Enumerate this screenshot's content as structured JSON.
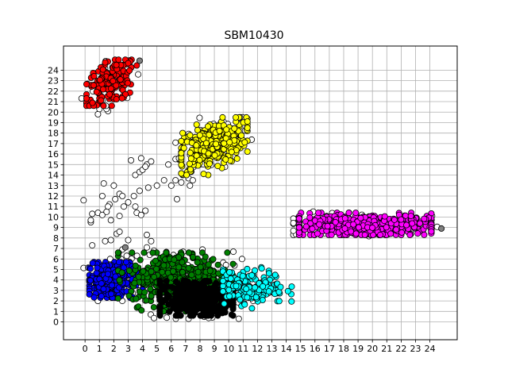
{
  "chart_data": {
    "type": "scatter",
    "title": "SBM10430",
    "xlabel": "",
    "ylabel": "",
    "xlim": [
      -1.5,
      25.9
    ],
    "ylim": [
      -1.7,
      26.3
    ],
    "xticks": [
      0,
      1,
      2,
      3,
      4,
      5,
      6,
      7,
      8,
      9,
      10,
      11,
      12,
      13,
      14,
      15,
      16,
      17,
      18,
      19,
      20,
      21,
      22,
      23,
      24
    ],
    "yticks": [
      0,
      1,
      2,
      3,
      4,
      5,
      6,
      7,
      8,
      9,
      10,
      11,
      12,
      13,
      14,
      15,
      16,
      17,
      18,
      19,
      20,
      21,
      22,
      23,
      24
    ],
    "grid": true,
    "colors": {
      "red": "#ff0000",
      "yellow": "#ffff00",
      "magenta": "#ff00ff",
      "blue": "#0000ff",
      "green": "#008000",
      "black": "#000000",
      "cyan": "#00ffff",
      "white": "#ffffff",
      "gray": "#808080",
      "edge": "#000000"
    },
    "clusters": [
      {
        "color": "red",
        "center": [
          1.8,
          22.8
        ],
        "spread": [
          0.9,
          1.0
        ],
        "n": 150,
        "bounds": [
          0.1,
          3.6,
          20.6,
          25.0
        ],
        "trend": 1.0
      },
      {
        "color": "yellow",
        "center": [
          8.8,
          16.8
        ],
        "spread": [
          1.2,
          1.1
        ],
        "n": 320,
        "bounds": [
          6.7,
          11.3,
          14.0,
          19.5
        ],
        "trend": 1.0
      },
      {
        "color": "magenta",
        "center": [
          19.5,
          9.2
        ],
        "spread": [
          2.8,
          0.55
        ],
        "n": 420,
        "bounds": [
          14.9,
          24.1,
          8.3,
          10.4
        ],
        "trend": 0
      },
      {
        "color": "blue",
        "center": [
          1.8,
          4.0
        ],
        "spread": [
          0.8,
          0.9
        ],
        "n": 260,
        "bounds": [
          0.3,
          4.0,
          2.3,
          5.7
        ],
        "trend": 0
      },
      {
        "color": "green",
        "center": [
          6.5,
          4.2
        ],
        "spread": [
          1.7,
          1.3
        ],
        "n": 420,
        "bounds": [
          2.3,
          10.3,
          1.0,
          6.6
        ],
        "trend": 0
      },
      {
        "color": "black",
        "center": [
          7.8,
          2.2
        ],
        "spread": [
          1.4,
          0.9
        ],
        "n": 350,
        "bounds": [
          5.2,
          10.3,
          0.6,
          3.9
        ],
        "trend": 0
      },
      {
        "color": "cyan",
        "center": [
          11.5,
          3.3
        ],
        "spread": [
          1.2,
          0.8
        ],
        "n": 170,
        "bounds": [
          9.6,
          14.5,
          1.3,
          5.7
        ],
        "trend": 0
      }
    ],
    "white_points": [
      [
        -0.1,
        11.6
      ],
      [
        0.4,
        9.5
      ],
      [
        0.4,
        9.7
      ],
      [
        0.5,
        10.3
      ],
      [
        0.9,
        10.4
      ],
      [
        1.2,
        10.2
      ],
      [
        1.5,
        10.5
      ],
      [
        1.8,
        9.7
      ],
      [
        1.2,
        12.0
      ],
      [
        1.7,
        11.2
      ],
      [
        1.6,
        11.0
      ],
      [
        2.1,
        11.7
      ],
      [
        2.4,
        12.2
      ],
      [
        2.6,
        12.0
      ],
      [
        2.0,
        13.0
      ],
      [
        1.3,
        13.2
      ],
      [
        2.4,
        10.1
      ],
      [
        2.7,
        11.0
      ],
      [
        3.0,
        11.4
      ],
      [
        3.4,
        12.0
      ],
      [
        3.5,
        11.0
      ],
      [
        3.6,
        10.4
      ],
      [
        3.9,
        10.2
      ],
      [
        4.2,
        10.6
      ],
      [
        3.5,
        14.0
      ],
      [
        3.8,
        14.3
      ],
      [
        4.0,
        14.5
      ],
      [
        4.4,
        12.8
      ],
      [
        3.8,
        12.5
      ],
      [
        3.2,
        15.4
      ],
      [
        3.9,
        15.6
      ],
      [
        4.3,
        15.0
      ],
      [
        4.6,
        15.3
      ],
      [
        5.5,
        13.5
      ],
      [
        5.0,
        13.0
      ],
      [
        6.0,
        13.0
      ],
      [
        6.3,
        13.5
      ],
      [
        6.4,
        11.7
      ],
      [
        6.7,
        13.3
      ],
      [
        6.8,
        14.0
      ],
      [
        6.5,
        15.5
      ],
      [
        5.8,
        15.0
      ],
      [
        7.2,
        13.7
      ],
      [
        7.5,
        13.5
      ],
      [
        7.3,
        13.0
      ],
      [
        2.2,
        8.4
      ],
      [
        2.4,
        8.6
      ],
      [
        1.8,
        7.8
      ],
      [
        1.4,
        7.7
      ],
      [
        0.5,
        7.3
      ],
      [
        3.0,
        7.8
      ],
      [
        4.3,
        8.3
      ],
      [
        4.6,
        7.7
      ],
      [
        4.3,
        7.1
      ],
      [
        4.8,
        6.8
      ],
      [
        2.9,
        6.3
      ],
      [
        0.9,
        19.8
      ],
      [
        1.0,
        20.3
      ],
      [
        1.6,
        20.1
      ],
      [
        1.2,
        21.1
      ],
      [
        3.7,
        23.6
      ],
      [
        4.2,
        14.8
      ],
      [
        2.6,
        6.9
      ],
      [
        4.5,
        6.4
      ]
    ],
    "gray_points": [
      [
        3.8,
        24.9
      ],
      [
        24.8,
        8.9
      ],
      [
        2.8,
        7.1
      ]
    ]
  }
}
